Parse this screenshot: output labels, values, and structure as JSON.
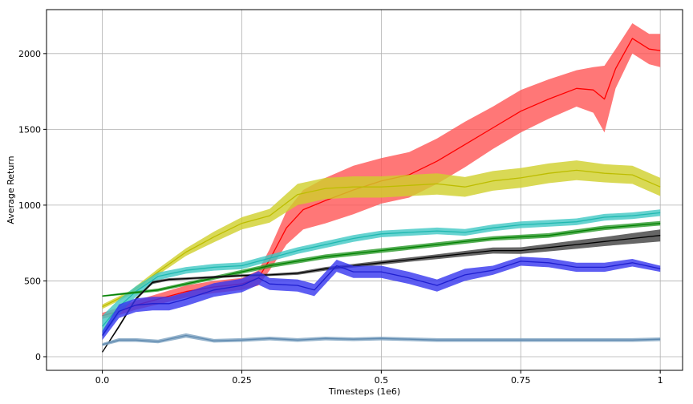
{
  "chart_data": {
    "type": "line",
    "title": "",
    "xlabel": "Timesteps (1e6)",
    "ylabel": "Average Return",
    "xlim": [
      -0.1,
      1.04
    ],
    "ylim": [
      -90,
      2290
    ],
    "grid": true,
    "legend": "none",
    "x_ticks": [
      0,
      0.25,
      0.5,
      0.75,
      1
    ],
    "x_tick_labels": [
      "0.0",
      "0.25",
      "0.5",
      "0.75",
      "1"
    ],
    "y_ticks": [
      0,
      500,
      1000,
      1500,
      2000
    ],
    "y_tick_labels": [
      "0",
      "500",
      "1000",
      "1500",
      "2000"
    ],
    "series": [
      {
        "name": "red",
        "color": "#ff0000",
        "band_color": "#ff5555",
        "x": [
          0,
          0.03,
          0.06,
          0.1,
          0.15,
          0.2,
          0.25,
          0.28,
          0.3,
          0.33,
          0.36,
          0.4,
          0.45,
          0.5,
          0.55,
          0.6,
          0.65,
          0.7,
          0.75,
          0.8,
          0.85,
          0.88,
          0.9,
          0.92,
          0.95,
          0.98,
          1.0
        ],
        "y": [
          270,
          300,
          340,
          380,
          430,
          460,
          480,
          520,
          640,
          850,
          970,
          1030,
          1100,
          1160,
          1200,
          1290,
          1400,
          1510,
          1620,
          1700,
          1770,
          1760,
          1700,
          1900,
          2100,
          2030,
          2020
        ],
        "spread": [
          20,
          25,
          30,
          35,
          40,
          40,
          40,
          50,
          70,
          110,
          130,
          150,
          160,
          150,
          150,
          150,
          150,
          140,
          140,
          130,
          120,
          150,
          220,
          130,
          100,
          100,
          110
        ]
      },
      {
        "name": "yellow",
        "color": "#bdbd00",
        "band_color": "#cfcf2a",
        "x": [
          0,
          0.05,
          0.1,
          0.15,
          0.2,
          0.25,
          0.3,
          0.35,
          0.4,
          0.45,
          0.5,
          0.55,
          0.6,
          0.65,
          0.7,
          0.75,
          0.8,
          0.85,
          0.9,
          0.95,
          1.0
        ],
        "y": [
          330,
          420,
          560,
          690,
          790,
          880,
          930,
          1070,
          1110,
          1120,
          1120,
          1130,
          1140,
          1120,
          1160,
          1180,
          1210,
          1230,
          1210,
          1200,
          1120
        ],
        "spread": [
          15,
          15,
          20,
          25,
          35,
          40,
          45,
          70,
          70,
          70,
          70,
          70,
          70,
          65,
          65,
          65,
          65,
          65,
          60,
          60,
          60
        ]
      },
      {
        "name": "cyan",
        "color": "#20b8b0",
        "band_color": "#40c8c4",
        "x": [
          0,
          0.03,
          0.06,
          0.1,
          0.15,
          0.2,
          0.25,
          0.3,
          0.35,
          0.4,
          0.45,
          0.5,
          0.55,
          0.6,
          0.65,
          0.7,
          0.75,
          0.8,
          0.85,
          0.9,
          0.95,
          1.0
        ],
        "y": [
          200,
          330,
          430,
          530,
          570,
          590,
          600,
          650,
          700,
          740,
          780,
          810,
          820,
          830,
          820,
          850,
          870,
          880,
          890,
          920,
          930,
          950
        ],
        "spread": [
          70,
          50,
          35,
          25,
          22,
          22,
          22,
          22,
          22,
          22,
          22,
          22,
          22,
          22,
          22,
          22,
          22,
          22,
          22,
          22,
          22,
          22
        ]
      },
      {
        "name": "green",
        "color": "#008000",
        "band_color": "#2a9a2a",
        "x": [
          0,
          0.1,
          0.2,
          0.3,
          0.4,
          0.5,
          0.6,
          0.7,
          0.8,
          0.9,
          1.0
        ],
        "y": [
          400,
          440,
          520,
          600,
          660,
          700,
          740,
          780,
          800,
          850,
          880
        ],
        "spread": [
          5,
          10,
          12,
          14,
          15,
          15,
          15,
          15,
          15,
          15,
          15
        ]
      },
      {
        "name": "black",
        "color": "#000000",
        "band_color": "#404040",
        "x": [
          0,
          0.03,
          0.06,
          0.09,
          0.12,
          0.15,
          0.2,
          0.25,
          0.3,
          0.35,
          0.4,
          0.45,
          0.5,
          0.55,
          0.6,
          0.65,
          0.7,
          0.75,
          0.8,
          0.85,
          0.9,
          0.95,
          1.0
        ],
        "y": [
          30,
          200,
          380,
          490,
          510,
          515,
          525,
          535,
          540,
          550,
          580,
          600,
          620,
          640,
          660,
          680,
          700,
          700,
          720,
          740,
          760,
          780,
          800
        ],
        "spread": [
          5,
          10,
          10,
          10,
          8,
          8,
          8,
          8,
          8,
          10,
          12,
          12,
          14,
          14,
          16,
          18,
          20,
          22,
          25,
          28,
          30,
          35,
          40
        ]
      },
      {
        "name": "blue",
        "color": "#1f1fd0",
        "band_color": "#3535ef",
        "x": [
          0,
          0.03,
          0.06,
          0.09,
          0.12,
          0.15,
          0.2,
          0.25,
          0.28,
          0.3,
          0.35,
          0.38,
          0.42,
          0.45,
          0.5,
          0.55,
          0.6,
          0.65,
          0.7,
          0.75,
          0.8,
          0.85,
          0.9,
          0.95,
          1.0
        ],
        "y": [
          140,
          300,
          340,
          350,
          350,
          380,
          440,
          470,
          520,
          480,
          470,
          440,
          600,
          560,
          560,
          520,
          470,
          540,
          570,
          630,
          620,
          590,
          590,
          620,
          580
        ],
        "spread": [
          30,
          45,
          45,
          45,
          45,
          45,
          45,
          45,
          45,
          40,
          40,
          40,
          40,
          40,
          40,
          40,
          40,
          40,
          30,
          30,
          30,
          30,
          30,
          25,
          20
        ]
      },
      {
        "name": "steelblue",
        "color": "#5f8ab0",
        "band_color": "#7ba0bf",
        "x": [
          0,
          0.03,
          0.06,
          0.1,
          0.15,
          0.2,
          0.25,
          0.3,
          0.35,
          0.4,
          0.45,
          0.5,
          0.55,
          0.6,
          0.65,
          0.7,
          0.75,
          0.8,
          0.85,
          0.9,
          0.95,
          1.0
        ],
        "y": [
          80,
          110,
          110,
          100,
          140,
          105,
          110,
          120,
          110,
          120,
          115,
          120,
          115,
          110,
          110,
          110,
          110,
          110,
          110,
          110,
          110,
          115
        ],
        "spread": [
          10,
          12,
          12,
          12,
          14,
          12,
          12,
          12,
          12,
          12,
          12,
          12,
          12,
          12,
          12,
          12,
          12,
          12,
          12,
          12,
          12,
          12
        ]
      }
    ]
  }
}
